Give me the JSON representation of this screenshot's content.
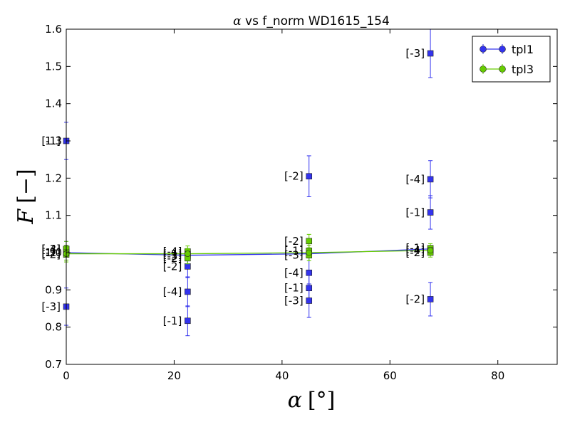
{
  "chart_data": {
    "type": "scatter",
    "title": "α vs f_norm WD1615_154",
    "title_parts": [
      "α",
      " vs f_norm WD1615_154"
    ],
    "xlabel_symbol": "α",
    "xlabel_unit": "[°]",
    "ylabel_symbol": "F",
    "ylabel_unit": "[−]",
    "xlim": [
      0,
      91
    ],
    "ylim": [
      0.7,
      1.6
    ],
    "xticks": [
      0,
      20,
      40,
      60,
      80
    ],
    "xtick_labels": [
      "0",
      "20",
      "40",
      "60",
      "80"
    ],
    "yticks": [
      0.7,
      0.8,
      0.9,
      1.0,
      1.1,
      1.2,
      1.3,
      1.4,
      1.5,
      1.6
    ],
    "ytick_labels": [
      "0.7",
      "0.8",
      "0.9",
      "1.0",
      "1.1",
      "1.2",
      "1.3",
      "1.4",
      "1.5",
      "1.6"
    ],
    "grid": false,
    "legend": "top-right",
    "series": [
      {
        "name": "tpl1",
        "color": "#3333ee",
        "line": {
          "x": [
            0,
            22.5,
            45,
            67.5
          ],
          "y": [
            1.0,
            0.993,
            0.997,
            1.01
          ]
        },
        "points": [
          {
            "x": 0,
            "y": 1.3,
            "err": 0.05,
            "label": "[-1]"
          },
          {
            "x": 0,
            "y": 0.855,
            "err": 0.05,
            "label": "[-3]"
          },
          {
            "x": 0,
            "y": 1.0,
            "err": 0.02,
            "label": "[-2]"
          },
          {
            "x": 0,
            "y": 1.01,
            "err": 0.02,
            "label": "[-4]"
          },
          {
            "x": 22.5,
            "y": 0.817,
            "err": 0.04,
            "label": "[-1]"
          },
          {
            "x": 22.5,
            "y": 0.895,
            "err": 0.04,
            "label": "[-4]"
          },
          {
            "x": 22.5,
            "y": 0.963,
            "err": 0.03,
            "label": "[-2]"
          },
          {
            "x": 22.5,
            "y": 0.99,
            "err": 0.02,
            "label": "[-3]"
          },
          {
            "x": 45,
            "y": 1.205,
            "err": 0.055,
            "label": "[-2]"
          },
          {
            "x": 45,
            "y": 0.946,
            "err": 0.04,
            "label": "[-4]"
          },
          {
            "x": 45,
            "y": 0.905,
            "err": 0.04,
            "label": "[-1]"
          },
          {
            "x": 45,
            "y": 0.871,
            "err": 0.045,
            "label": "[-3]"
          },
          {
            "x": 67.5,
            "y": 1.535,
            "err": 0.065,
            "label": "[-3]"
          },
          {
            "x": 67.5,
            "y": 1.197,
            "err": 0.05,
            "label": "[-4]"
          },
          {
            "x": 67.5,
            "y": 1.108,
            "err": 0.045,
            "label": "[-1]"
          },
          {
            "x": 67.5,
            "y": 0.875,
            "err": 0.045,
            "label": "[-2]"
          }
        ]
      },
      {
        "name": "tpl3",
        "color": "#66cc00",
        "line": {
          "x": [
            0,
            22.5,
            45,
            67.5
          ],
          "y": [
            0.997,
            0.997,
            1.0,
            1.006
          ]
        },
        "points": [
          {
            "x": 0,
            "y": 1.01,
            "err": 0.02,
            "label": "[-3]"
          },
          {
            "x": 0,
            "y": 1.0,
            "err": 0.02,
            "label": "[-1]"
          },
          {
            "x": 0,
            "y": 0.995,
            "err": 0.02,
            "label": "[-2]"
          },
          {
            "x": 22.5,
            "y": 1.003,
            "err": 0.015,
            "label": "[-4]"
          },
          {
            "x": 22.5,
            "y": 0.996,
            "err": 0.015,
            "label": "[-1]"
          },
          {
            "x": 22.5,
            "y": 0.985,
            "err": 0.015,
            "label": "[-2]"
          },
          {
            "x": 45,
            "y": 1.031,
            "err": 0.018,
            "label": "[-2]"
          },
          {
            "x": 45,
            "y": 1.005,
            "err": 0.015,
            "label": "[-1]"
          },
          {
            "x": 45,
            "y": 0.993,
            "err": 0.015,
            "label": "[-3]"
          },
          {
            "x": 67.5,
            "y": 1.012,
            "err": 0.012,
            "label": "[-1]"
          },
          {
            "x": 67.5,
            "y": 1.006,
            "err": 0.012,
            "label": "[-4]"
          },
          {
            "x": 67.5,
            "y": 1.0,
            "err": 0.012,
            "label": "[-2]"
          }
        ]
      }
    ]
  }
}
